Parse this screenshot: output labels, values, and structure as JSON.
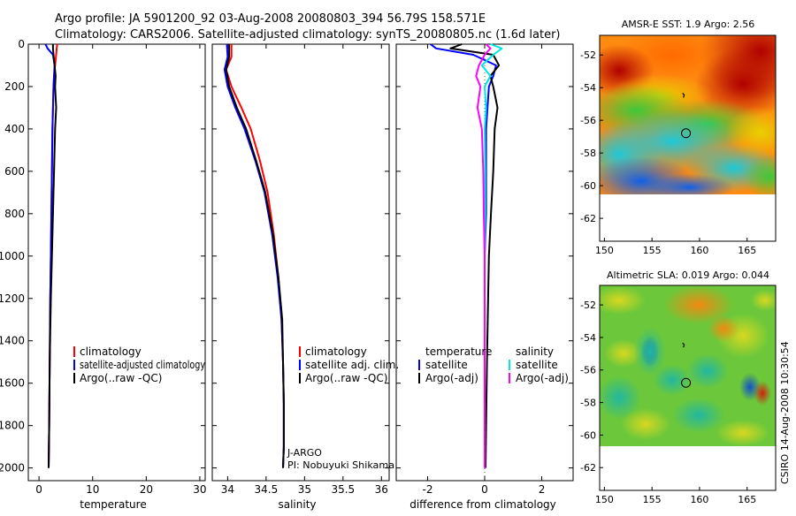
{
  "header": {
    "line1": "Argo profile: JA 5901200_92 03-Aug-2008 20080803_394 56.79S 158.571E",
    "line2": "Climatology: CARS2006. Satellite-adjusted climatology: synTS_20080805.nc (1.6d later)"
  },
  "credit": "CSIRO 14-Aug-2008 10:30:54",
  "chart_data": [
    {
      "id": "temperature",
      "type": "line",
      "xlabel": "temperature",
      "ylabel": "",
      "xlim": [
        -2,
        31
      ],
      "ylim": [
        2060,
        0
      ],
      "xticks": [
        0,
        10,
        20,
        30
      ],
      "xtick_labels": [
        "0",
        "10",
        "20",
        "30"
      ],
      "yticks": [
        0,
        200,
        400,
        600,
        800,
        1000,
        1200,
        1400,
        1600,
        1800,
        2000
      ],
      "ytick_labels": [
        "0",
        "200",
        "400",
        "600",
        "800",
        "1000",
        "1200",
        "1400",
        "1600",
        "1800",
        "2000"
      ],
      "legend": [
        "climatology",
        "satellite-adjusted climatology",
        "Argo(..raw -QC)"
      ],
      "series": [
        {
          "name": "climatology",
          "color": "#ff0000",
          "x": [
            3.4,
            3.3,
            3.2,
            3.0,
            2.8,
            2.7,
            2.6,
            2.5,
            2.4,
            2.3,
            2.2,
            2.1,
            2.0,
            1.9,
            1.8
          ],
          "y": [
            0,
            20,
            50,
            100,
            150,
            200,
            300,
            400,
            600,
            800,
            1000,
            1200,
            1500,
            1800,
            2000
          ]
        },
        {
          "name": "satellite-adjusted climatology",
          "color": "#0000ff",
          "x": [
            1.2,
            1.6,
            2.6,
            2.9,
            2.8,
            2.7,
            2.6,
            2.5,
            2.4,
            2.3,
            2.2,
            2.1,
            2.0,
            1.9,
            1.8
          ],
          "y": [
            0,
            20,
            50,
            100,
            150,
            200,
            300,
            400,
            600,
            800,
            1000,
            1200,
            1500,
            1800,
            2000
          ]
        },
        {
          "name": "Argo(..raw -QC)",
          "color": "#000000",
          "x": [
            2.6,
            2.6,
            2.7,
            2.9,
            3.1,
            3.0,
            3.2,
            3.0,
            2.8,
            2.6,
            2.4,
            2.2,
            2.0,
            1.9,
            1.8
          ],
          "y": [
            0,
            20,
            50,
            100,
            150,
            200,
            300,
            400,
            600,
            800,
            1000,
            1200,
            1500,
            1800,
            2000
          ]
        }
      ]
    },
    {
      "id": "salinity",
      "type": "line",
      "xlabel": "salinity",
      "ylabel": "",
      "xlim": [
        33.8,
        36.1
      ],
      "ylim": [
        2060,
        0
      ],
      "xticks": [
        34,
        34.5,
        35,
        35.5,
        36
      ],
      "xtick_labels": [
        "34",
        "34.5",
        "35",
        "35.5",
        "36"
      ],
      "legend": [
        "climatology",
        "satellite adj. clim.",
        "Argo(..raw -QC)"
      ],
      "annotations": [
        "J-ARGO",
        "PI: Nobuyuki Shikama"
      ],
      "series": [
        {
          "name": "climatology",
          "color": "#ff0000",
          "x": [
            34.05,
            34.05,
            33.98,
            34.05,
            34.18,
            34.3,
            34.42,
            34.52,
            34.6,
            34.66,
            34.7,
            34.72,
            34.73,
            34.73,
            34.72
          ],
          "y": [
            0,
            60,
            120,
            200,
            300,
            400,
            550,
            700,
            900,
            1100,
            1300,
            1500,
            1700,
            1900,
            2000
          ]
        },
        {
          "name": "satellite adj. clim.",
          "color": "#0000ff",
          "x": [
            33.99,
            34.0,
            33.96,
            34.0,
            34.1,
            34.22,
            34.36,
            34.48,
            34.58,
            34.65,
            34.7,
            34.72,
            34.73,
            34.73,
            34.72
          ],
          "y": [
            0,
            60,
            120,
            200,
            300,
            400,
            550,
            700,
            900,
            1100,
            1300,
            1500,
            1700,
            1900,
            2000
          ]
        },
        {
          "name": "Argo(..raw -QC)",
          "color": "#000000",
          "x": [
            34.02,
            34.02,
            33.98,
            34.02,
            34.12,
            34.24,
            34.37,
            34.49,
            34.59,
            34.66,
            34.71,
            34.72,
            34.73,
            34.73,
            34.72
          ],
          "y": [
            0,
            60,
            120,
            200,
            300,
            400,
            550,
            700,
            900,
            1100,
            1300,
            1500,
            1700,
            1900,
            2000
          ]
        }
      ]
    },
    {
      "id": "difference",
      "type": "line",
      "xlabel": "difference from climatology",
      "ylabel": "",
      "xlim": [
        -3.1,
        3.1
      ],
      "ylim": [
        2060,
        0
      ],
      "xticks": [
        -2,
        0,
        2
      ],
      "xtick_labels": [
        "-2",
        "0",
        "2"
      ],
      "legend_titles": [
        "temperature",
        "salinity"
      ],
      "legend": [
        "satellite",
        "Argo(-adj)",
        "satellite",
        "Argo(-adj)"
      ],
      "series": [
        {
          "name": "temperature satellite",
          "color": "#0000ff",
          "x": [
            -1.9,
            -1.7,
            -0.4,
            0.4,
            0.3,
            0.15,
            0.1,
            0.05,
            0.05,
            0.05,
            0.0,
            0.0,
            0.0,
            0.0,
            0.0
          ],
          "y": [
            0,
            20,
            50,
            100,
            150,
            200,
            300,
            400,
            600,
            800,
            1000,
            1200,
            1500,
            1800,
            2000
          ]
        },
        {
          "name": "temperature Argo(-adj)",
          "color": "#000000",
          "x": [
            -0.8,
            -1.2,
            0.3,
            0.5,
            0.2,
            0.3,
            0.45,
            0.35,
            0.3,
            0.22,
            0.15,
            0.12,
            0.08,
            0.05,
            0.03
          ],
          "y": [
            0,
            20,
            50,
            100,
            150,
            200,
            300,
            400,
            600,
            800,
            1000,
            1200,
            1500,
            1800,
            2000
          ]
        },
        {
          "name": "salinity satellite",
          "color": "#00e5e5",
          "x": [
            0.2,
            0.6,
            0.3,
            -0.1,
            0.2,
            0.0,
            0.05,
            0.0,
            0.02,
            0.02,
            0.0,
            0.0,
            0.0,
            0.0,
            0.0
          ],
          "y": [
            0,
            20,
            50,
            100,
            150,
            200,
            300,
            400,
            600,
            800,
            1000,
            1200,
            1500,
            1800,
            2000
          ]
        },
        {
          "name": "salinity Argo(-adj)",
          "color": "#ff00ff",
          "x": [
            0.05,
            0.2,
            0.0,
            -0.2,
            -0.3,
            -0.15,
            -0.25,
            -0.1,
            -0.05,
            -0.03,
            0.0,
            0.0,
            0.0,
            0.0,
            0.0
          ],
          "y": [
            0,
            20,
            50,
            100,
            150,
            200,
            300,
            400,
            600,
            800,
            1000,
            1200,
            1500,
            1800,
            2000
          ]
        }
      ]
    },
    {
      "id": "sst-map",
      "type": "heatmap",
      "title": "AMSR-E SST: 1.9 Argo: 2.56",
      "xlim": [
        149.5,
        168
      ],
      "ylim": [
        -63.4,
        -50.8
      ],
      "xticks": [
        150,
        155,
        160,
        165
      ],
      "xtick_labels": [
        "150",
        "155",
        "160",
        "165"
      ],
      "yticks": [
        -52,
        -54,
        -56,
        -58,
        -60,
        -62
      ],
      "ytick_labels": [
        "-52",
        "-54",
        "-56",
        "-58",
        "-60",
        "-62"
      ],
      "data_bottom": -60,
      "argo_position": [
        158.571,
        -56.79
      ],
      "track_mark": [
        158.3,
        -54.5
      ]
    },
    {
      "id": "sla-map",
      "type": "heatmap",
      "title": "Altimetric SLA: 0.019 Argo: 0.044",
      "xlim": [
        149.5,
        168
      ],
      "ylim": [
        -63.4,
        -50.8
      ],
      "xticks": [
        150,
        155,
        160,
        165
      ],
      "xtick_labels": [
        "150",
        "155",
        "160",
        "165"
      ],
      "yticks": [
        -52,
        -54,
        -56,
        -58,
        -60,
        -62
      ],
      "ytick_labels": [
        "-52",
        "-54",
        "-56",
        "-58",
        "-60",
        "-62"
      ],
      "data_bottom": -60,
      "argo_position": [
        158.571,
        -56.79
      ],
      "track_mark": [
        158.3,
        -54.5
      ]
    }
  ]
}
